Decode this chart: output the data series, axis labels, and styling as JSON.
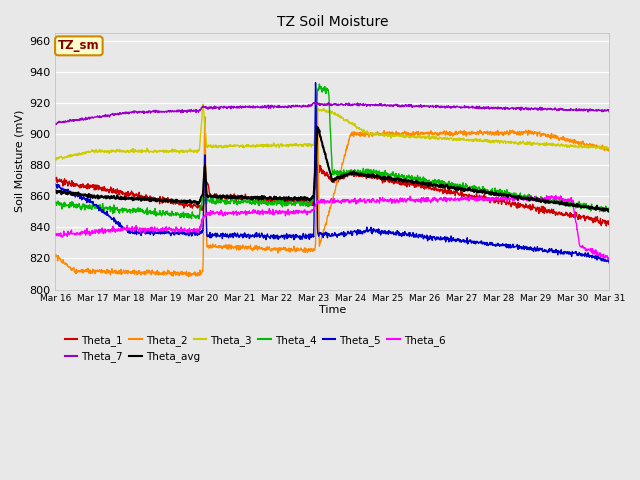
{
  "title": "TZ Soil Moisture",
  "xlabel": "Time",
  "ylabel": "Soil Moisture (mV)",
  "ylim": [
    800,
    965
  ],
  "bg_color": "#e8e8e8",
  "legend_label": "TZ_sm",
  "x_tick_labels": [
    "Mar 16",
    "Mar 17",
    "Mar 18",
    "Mar 19",
    "Mar 20",
    "Mar 21",
    "Mar 22",
    "Mar 23",
    "Mar 24",
    "Mar 25",
    "Mar 26",
    "Mar 27",
    "Mar 28",
    "Mar 29",
    "Mar 30",
    "Mar 31"
  ],
  "series": {
    "Theta_1": {
      "color": "#cc0000",
      "lw": 1.0
    },
    "Theta_2": {
      "color": "#ff8800",
      "lw": 1.0
    },
    "Theta_3": {
      "color": "#cccc00",
      "lw": 1.0
    },
    "Theta_4": {
      "color": "#00bb00",
      "lw": 1.0
    },
    "Theta_5": {
      "color": "#0000cc",
      "lw": 1.0
    },
    "Theta_6": {
      "color": "#ff00ff",
      "lw": 1.0
    },
    "Theta_7": {
      "color": "#9900cc",
      "lw": 1.0
    },
    "Theta_avg": {
      "color": "#000000",
      "lw": 1.5
    }
  }
}
